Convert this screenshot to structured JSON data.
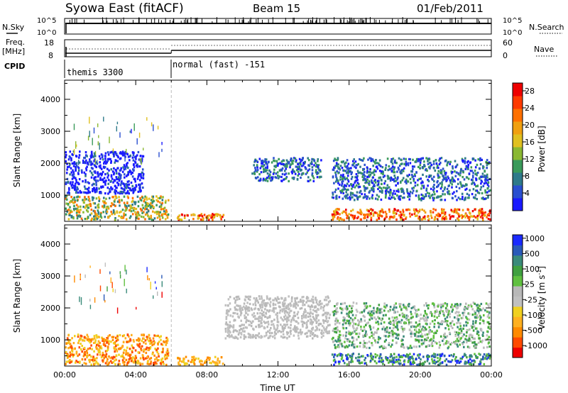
{
  "header": {
    "title": "Syowa East (fitACF)",
    "beam": "Beam 15",
    "date": "01/Feb/2011"
  },
  "noise_panel": {
    "left_label": "N.Sky",
    "right_label": "N.Search",
    "left_ticks": [
      "10^5",
      "10^0"
    ],
    "right_ticks": [
      "10^5",
      "10^0"
    ]
  },
  "freq_panel": {
    "left_label_1": "Freq.",
    "left_label_2": "[MHz]",
    "left_ticks": [
      "18",
      "8"
    ],
    "right_label": "Nave",
    "right_ticks": [
      "60",
      "0"
    ]
  },
  "cpid_panel": {
    "label": "CPID",
    "segments": [
      {
        "text": "themis 3300",
        "start_hour": 0
      },
      {
        "text": "normal (fast) -151",
        "start_hour": 6
      }
    ]
  },
  "chart_data": [
    {
      "type": "heatmap",
      "quantity": "power",
      "ylabel": "Slant Range [km]",
      "ylim": [
        180,
        4600
      ],
      "yticks": [
        1000,
        2000,
        3000,
        4000
      ],
      "xlim": [
        0,
        24
      ],
      "colorbar": {
        "label": "Power [dB]",
        "range": [
          0,
          30
        ],
        "ticks": [
          "4",
          "8",
          "12",
          "16",
          "20",
          "24",
          "28"
        ],
        "colors": [
          "#1a1aff",
          "#2a4fd0",
          "#2e7a8a",
          "#3a9a5a",
          "#8ab832",
          "#e0c020",
          "#f0a010",
          "#ff7000",
          "#ff3a00",
          "#ee0000"
        ]
      },
      "features": [
        {
          "t": [
            0.0,
            5.9
          ],
          "r": [
            180,
            1000
          ],
          "level": "moderate-high",
          "color_range": "green-orange"
        },
        {
          "t": [
            0.0,
            4.5
          ],
          "r": [
            1000,
            2400
          ],
          "level": "low",
          "color_range": "blue"
        },
        {
          "t": [
            6.3,
            9.0
          ],
          "r": [
            180,
            450
          ],
          "level": "high",
          "color_range": "red-orange"
        },
        {
          "t": [
            10.5,
            14.5
          ],
          "r": [
            1400,
            2200
          ],
          "level": "low-moderate",
          "color_range": "blue-green"
        },
        {
          "t": [
            15.0,
            24.0
          ],
          "r": [
            180,
            600
          ],
          "level": "high",
          "color_range": "red-orange"
        },
        {
          "t": [
            15.0,
            24.0
          ],
          "r": [
            800,
            2200
          ],
          "level": "low-moderate",
          "color_range": "blue-green"
        }
      ]
    },
    {
      "type": "heatmap",
      "quantity": "velocity",
      "ylabel": "Slant Range [km]",
      "ylim": [
        180,
        4600
      ],
      "yticks": [
        1000,
        2000,
        3000,
        4000
      ],
      "xlim": [
        0,
        24
      ],
      "xticks": [
        "00:00",
        "04:00",
        "08:00",
        "12:00",
        "16:00",
        "20:00",
        "00:00"
      ],
      "xlabel": "Time UT",
      "colorbar": {
        "label": "Velocity [m s",
        "label_sup": "-1",
        "label_end": "]",
        "ticks": [
          "-1000",
          "-500",
          "-100",
          "-25",
          "25",
          "100",
          "500",
          "1000"
        ],
        "colors": [
          "#ee0000",
          "#ff4a00",
          "#ff8a00",
          "#ffb020",
          "#f0d020",
          "#c0c0c0",
          "#b8b8b8",
          "#60c040",
          "#40a040",
          "#3a8a7a",
          "#2a5ab8",
          "#1a2aff"
        ]
      },
      "features": [
        {
          "t": [
            0.0,
            5.9
          ],
          "r": [
            180,
            1200
          ],
          "value": "negative",
          "color_range": "orange"
        },
        {
          "t": [
            6.3,
            9.0
          ],
          "r": [
            180,
            500
          ],
          "value": "negative",
          "color_range": "orange-yellow"
        },
        {
          "t": [
            9.0,
            15.0
          ],
          "r": [
            1000,
            2400
          ],
          "value": "near zero",
          "color_range": "grey"
        },
        {
          "t": [
            15.0,
            24.0
          ],
          "r": [
            180,
            600
          ],
          "value": "positive",
          "color_range": "green-blue"
        },
        {
          "t": [
            15.0,
            24.0
          ],
          "r": [
            700,
            2200
          ],
          "value": "mixed",
          "color_range": "grey-green"
        }
      ]
    }
  ]
}
